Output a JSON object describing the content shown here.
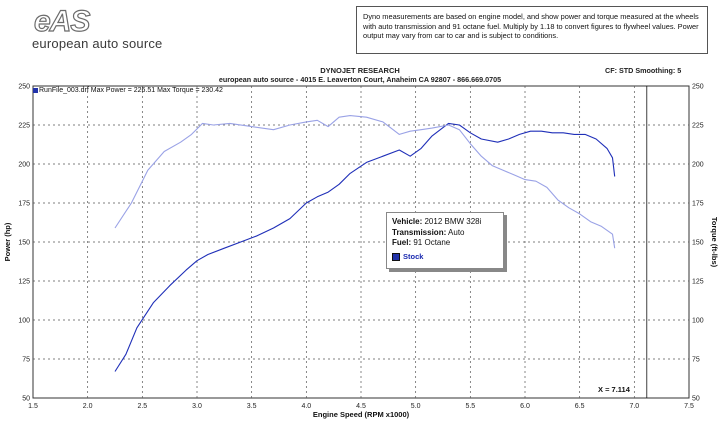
{
  "logo": {
    "mark": "eAS",
    "text": "european auto source"
  },
  "disclaimer": "Dyno measurements are based on engine model, and show power and torque measured at the wheels with auto transmission and 91 octane fuel. Multiply by 1.18 to convert figures to flywheel values. Power output may vary from car to car and is subject to conditions.",
  "header": {
    "line1": "DYNOJET RESEARCH",
    "line2": "european auto source - 4015 E. Leaverton Court, Anaheim  CA 92807 - 866.669.0705",
    "cf": "CF: STD  Smoothing: 5"
  },
  "run_info": "RunFile_003.drf Max Power = 226.51    Max Torque = 230.42",
  "info_box": {
    "vehicle_label": "Vehicle:",
    "vehicle": "2012 BMW 328i",
    "transmission_label": "Transmission:",
    "transmission": "Auto",
    "fuel_label": "Fuel:",
    "fuel": "91 Octane",
    "legend": "Stock"
  },
  "cursor_label": "X = 7.114",
  "colors": {
    "power": "#1f2fb8",
    "torque": "#9aa2e6",
    "grid": "#555555"
  },
  "chart_data": {
    "type": "line",
    "xlabel": "Engine Speed (RPM x1000)",
    "ylabel": "Power (hp)",
    "y2label": "Torque (ft-lbs)",
    "xlim": [
      1.5,
      7.5
    ],
    "ylim": [
      50,
      250
    ],
    "y2lim": [
      50,
      250
    ],
    "x_ticks": [
      "1.5",
      "2.0",
      "2.5",
      "3.0",
      "3.5",
      "4.0",
      "4.5",
      "5.0",
      "5.5",
      "6.0",
      "6.5",
      "7.0",
      "7.5"
    ],
    "y_ticks": [
      "50",
      "75",
      "100",
      "125",
      "150",
      "175",
      "200",
      "225",
      "250"
    ],
    "y2_ticks": [
      "50",
      "75",
      "100",
      "125",
      "150",
      "175",
      "200",
      "225",
      "250"
    ],
    "grid": true,
    "cursor_x": 7.114,
    "series": [
      {
        "name": "Power",
        "axis": "left",
        "x": [
          2.25,
          2.35,
          2.45,
          2.6,
          2.75,
          2.9,
          3.0,
          3.1,
          3.25,
          3.4,
          3.55,
          3.7,
          3.85,
          4.0,
          4.1,
          4.2,
          4.3,
          4.4,
          4.55,
          4.7,
          4.85,
          4.95,
          5.05,
          5.15,
          5.3,
          5.4,
          5.5,
          5.6,
          5.75,
          5.85,
          5.95,
          6.05,
          6.15,
          6.25,
          6.35,
          6.45,
          6.55,
          6.65,
          6.75,
          6.8,
          6.82
        ],
        "y": [
          67,
          78,
          95,
          111,
          122,
          132,
          138,
          142,
          146,
          150,
          154,
          159,
          165,
          175,
          179,
          182,
          187,
          194,
          201,
          205,
          209,
          205,
          210,
          218,
          226,
          225,
          220,
          216,
          214,
          216,
          219,
          221,
          221,
          220,
          220,
          219,
          219,
          216,
          210,
          204,
          192
        ]
      },
      {
        "name": "Torque",
        "axis": "right",
        "x": [
          2.25,
          2.4,
          2.55,
          2.7,
          2.85,
          2.95,
          3.05,
          3.15,
          3.3,
          3.5,
          3.7,
          3.85,
          4.0,
          4.1,
          4.2,
          4.3,
          4.4,
          4.55,
          4.7,
          4.85,
          4.95,
          5.05,
          5.15,
          5.3,
          5.4,
          5.5,
          5.6,
          5.7,
          5.8,
          5.9,
          6.0,
          6.1,
          6.2,
          6.3,
          6.4,
          6.5,
          6.6,
          6.7,
          6.8,
          6.82
        ],
        "y": [
          159,
          175,
          196,
          208,
          214,
          219,
          226,
          225,
          226,
          224,
          222,
          225,
          227,
          228,
          224,
          230,
          231,
          230,
          227,
          219,
          221,
          222,
          223,
          225,
          222,
          213,
          205,
          199,
          196,
          193,
          190,
          189,
          185,
          177,
          172,
          168,
          163,
          160,
          155,
          146
        ]
      }
    ]
  }
}
